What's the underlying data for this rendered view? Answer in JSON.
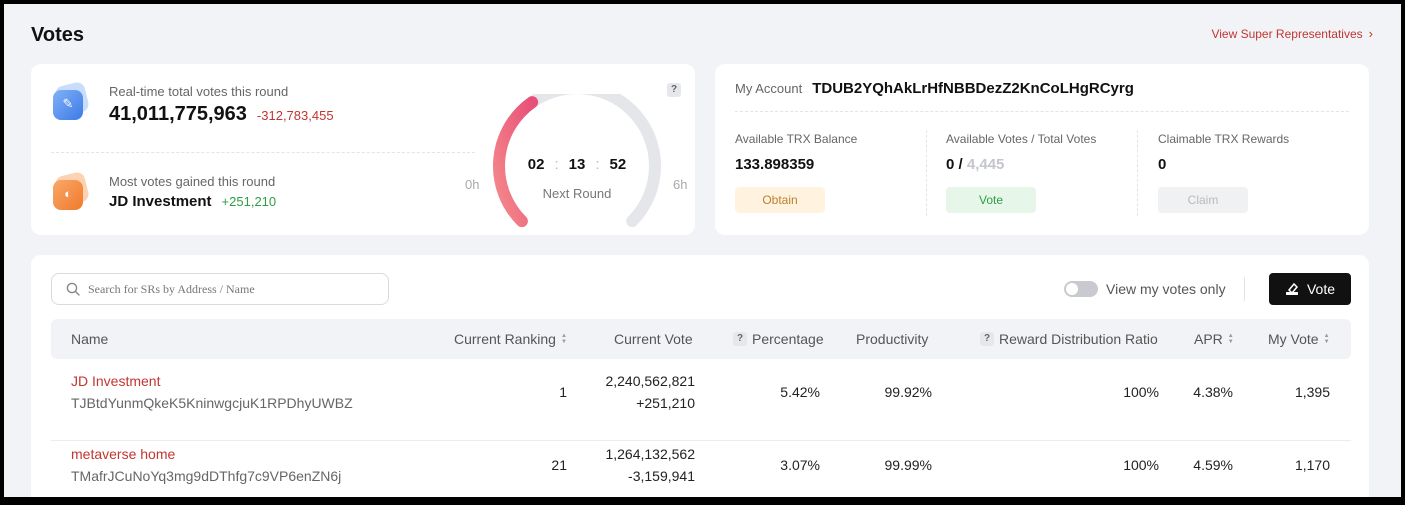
{
  "header": {
    "title": "Votes",
    "link_label": "View Super Representatives"
  },
  "round": {
    "total_label": "Real-time total votes this round",
    "total_value": "41,011,775,963",
    "total_delta": "-312,783,455",
    "most_label": "Most votes gained this round",
    "most_name": "JD Investment",
    "most_delta": "+251,210",
    "timer": {
      "h": "02",
      "m": "13",
      "s": "52"
    },
    "timer_label": "Next Round",
    "gauge_min": "0h",
    "gauge_max": "6h",
    "gauge_progress": 0.37,
    "help": "?"
  },
  "account": {
    "label": "My Account",
    "address": "TDUB2YQhAkLrHfNBBDezZ2KnCoLHgRCyrg",
    "balance_label": "Available TRX Balance",
    "balance_value": "133.898359",
    "obtain_label": "Obtain",
    "votes_label": "Available Votes / Total Votes",
    "votes_available": "0 /",
    "votes_total": "4,445",
    "vote_label": "Vote",
    "rewards_label": "Claimable TRX Rewards",
    "rewards_value": "0",
    "claim_label": "Claim"
  },
  "toolbar": {
    "search_placeholder": "Search for SRs by Address / Name",
    "toggle_label": "View my votes only",
    "vote_button": "Vote"
  },
  "table": {
    "columns": {
      "name": "Name",
      "ranking": "Current Ranking",
      "vote": "Current Vote",
      "percentage": "Percentage",
      "productivity": "Productivity",
      "ratio": "Reward Distribution Ratio",
      "apr": "APR",
      "myvote": "My Vote"
    },
    "rows": [
      {
        "name": "JD Investment",
        "address": "TJBtdYunmQkeK5KninwgcjuK1RPDhyUWBZ",
        "ranking": "1",
        "vote": "2,240,562,821",
        "delta": "+251,210",
        "percentage": "5.42%",
        "productivity": "99.92%",
        "ratio": "100%",
        "apr": "4.38%",
        "myvote": "1,395"
      },
      {
        "name": "metaverse home",
        "address": "TMafrJCuNoYq3mg9dDThfg7c9VP6enZN6j",
        "ranking": "21",
        "vote": "1,264,132,562",
        "delta": "-3,159,941",
        "percentage": "3.07%",
        "productivity": "99.99%",
        "ratio": "100%",
        "apr": "4.59%",
        "myvote": "1,170"
      }
    ]
  },
  "colors": {
    "accent_red": "#c23631",
    "positive_green": "#2e9e44",
    "gauge_track": "#e4e6ea",
    "gauge_fill_start": "#f48a8a",
    "gauge_fill_end": "#e8507a"
  }
}
